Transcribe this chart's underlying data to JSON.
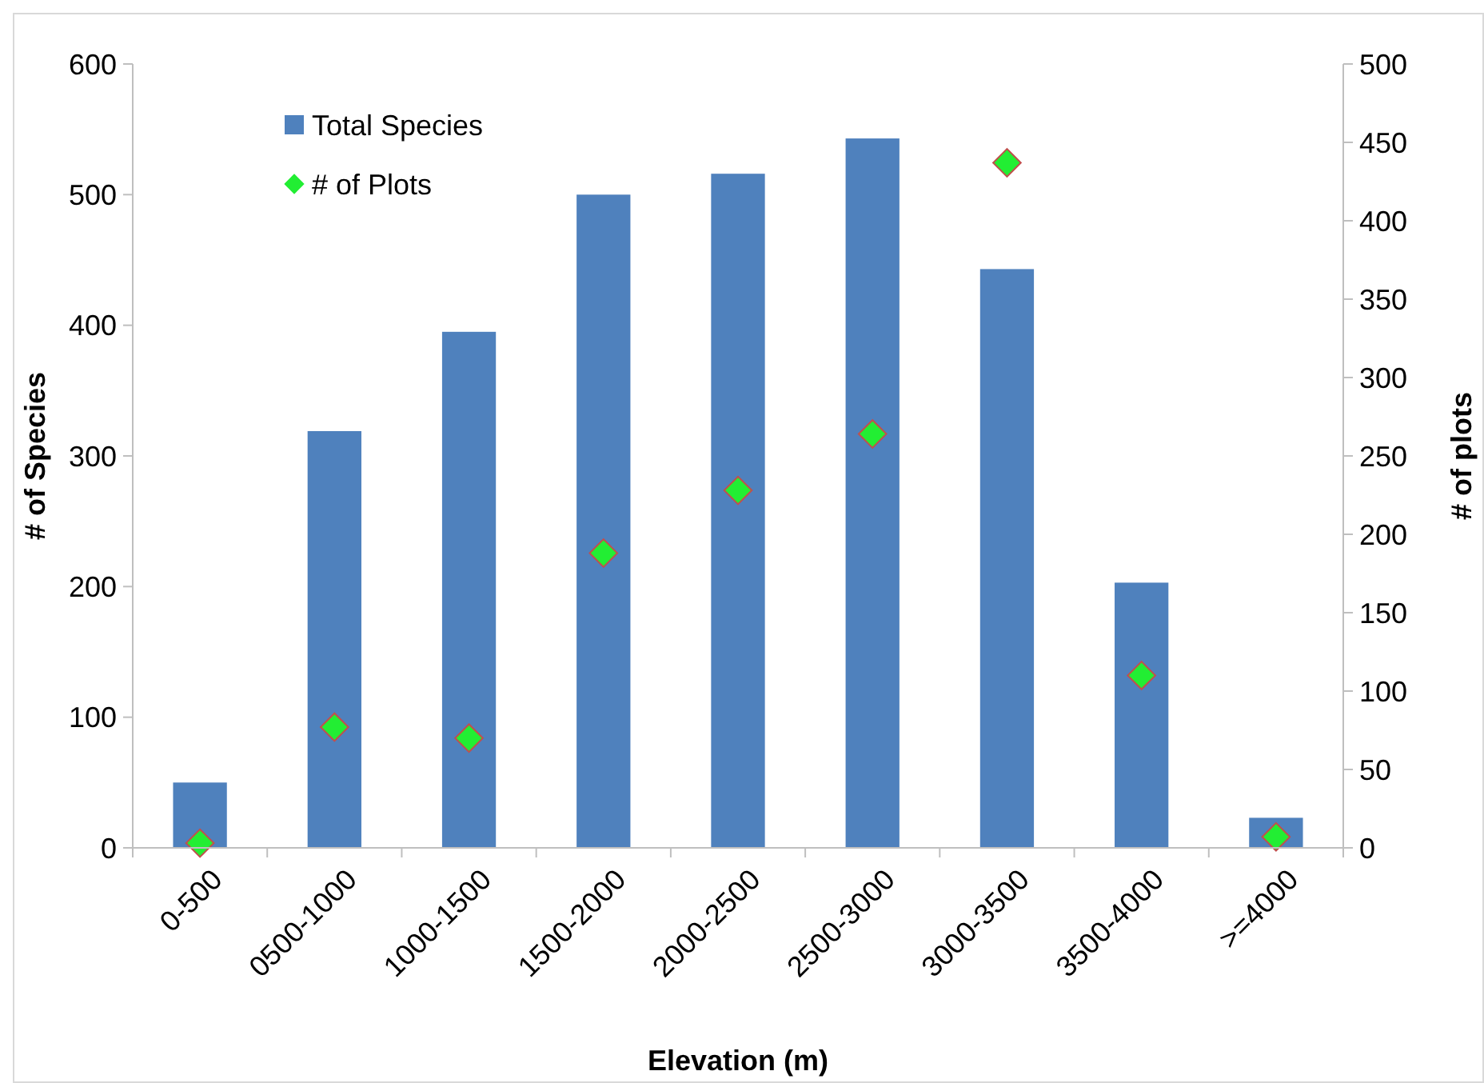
{
  "chart_data": {
    "type": "bar",
    "xlabel": "Elevation (m)",
    "ylabel": "# of Species",
    "y2label": "# of plots",
    "categories": [
      "0-500",
      "0500-1000",
      "1000-1500",
      "1500-2000",
      "2000-2500",
      "2500-3000",
      "3000-3500",
      "3500-4000",
      ">=4000"
    ],
    "series": [
      {
        "name": "Total Species",
        "color": "#4f81bd",
        "values": [
          50,
          319,
          395,
          500,
          516,
          543,
          443,
          203,
          23
        ]
      },
      {
        "name": "# of Plots",
        "type": "scatter",
        "axis": "y2",
        "color": "#22ee33",
        "marker": "diamond",
        "values": [
          3,
          77,
          70,
          188,
          228,
          264,
          437,
          110,
          7
        ]
      }
    ],
    "ylim": [
      0,
      600
    ],
    "yticks": [
      0,
      100,
      200,
      300,
      400,
      500,
      600
    ],
    "y2lim": [
      0,
      500
    ],
    "y2ticks": [
      0,
      50,
      100,
      150,
      200,
      250,
      300,
      350,
      400,
      450,
      500
    ],
    "legend": "top left",
    "grid": false
  }
}
